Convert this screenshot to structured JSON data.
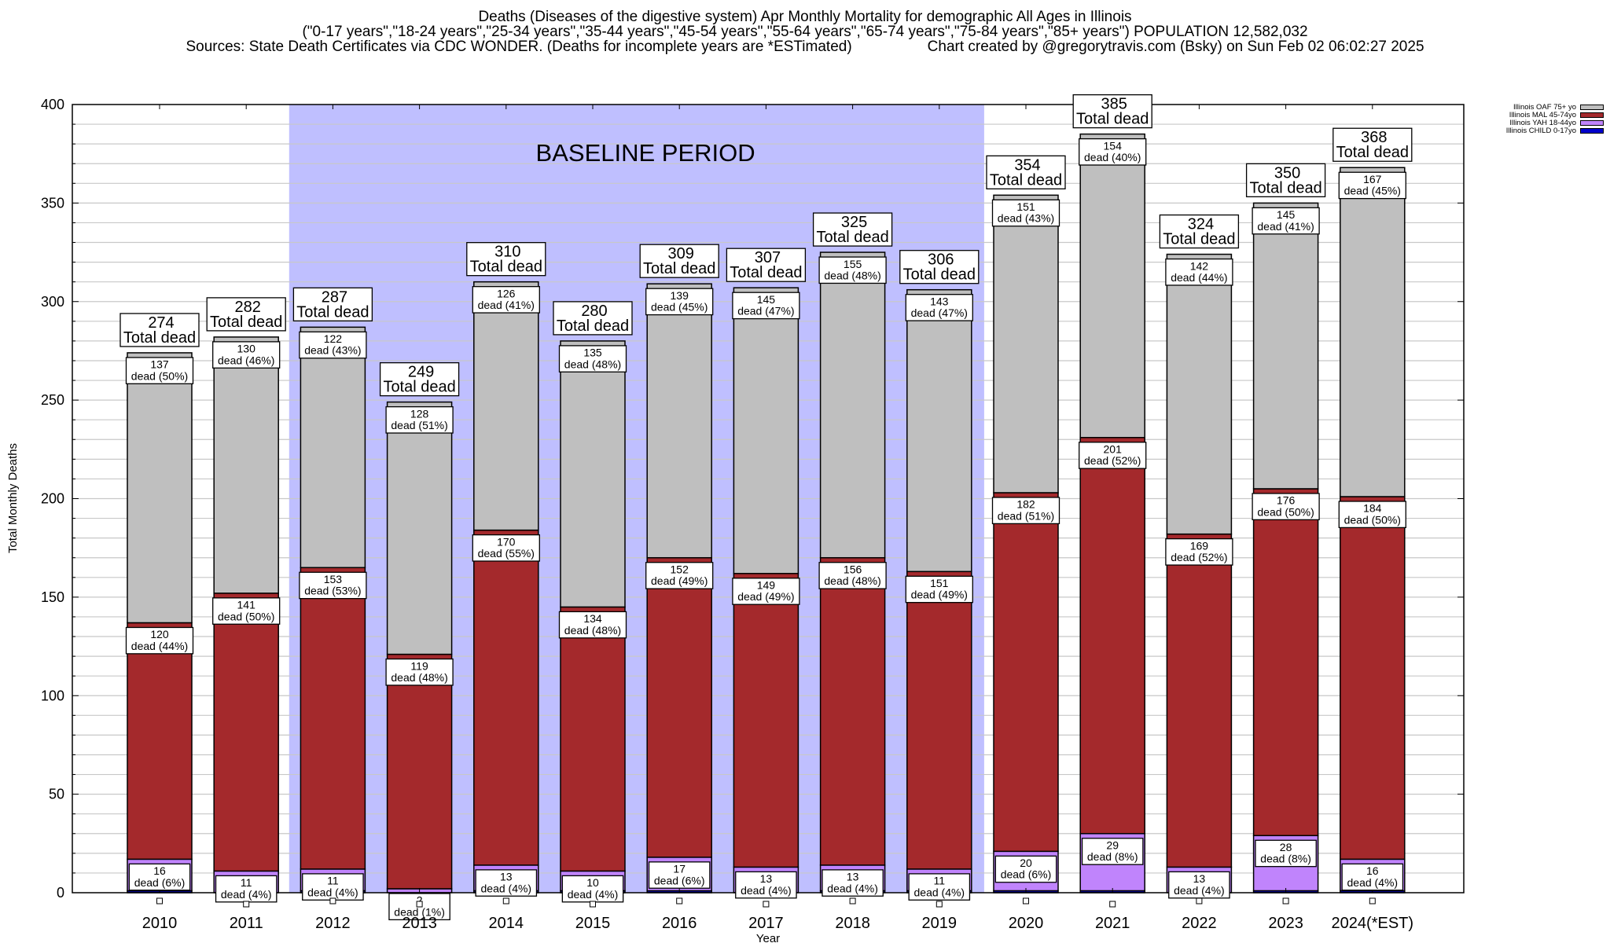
{
  "header": {
    "title_line1": "Deaths (Diseases of the digestive system) Apr Monthly Mortality for demographic All Ages in Illinois",
    "title_line2": "(\"0-17 years\",\"18-24 years\",\"25-34 years\",\"35-44 years\",\"45-54 years\",\"55-64 years\",\"65-74 years\",\"75-84 years\",\"85+ years\") POPULATION 12,582,032",
    "title_line3_left": "Sources: State Death Certificates via CDC WONDER. (Deaths for incomplete years are *ESTimated)",
    "title_line3_right": "Chart created by @gregorytravis.com (Bsky) on Sun Feb 02 06:02:27 2025"
  },
  "chart_data": {
    "type": "bar",
    "stacked": true,
    "title": "Deaths (Diseases of the digestive system) Apr Monthly Mortality for demographic All Ages in Illinois",
    "xlabel": "Year",
    "ylabel": "Total Monthly Deaths",
    "ylim": [
      0,
      400
    ],
    "yticks": [
      0,
      50,
      100,
      150,
      200,
      250,
      300,
      350,
      400
    ],
    "minor_grid_step": 10,
    "grid": true,
    "legend_position": "top-right",
    "categories": [
      "2010",
      "2011",
      "2012",
      "2013",
      "2014",
      "2015",
      "2016",
      "2017",
      "2018",
      "2019",
      "2020",
      "2021",
      "2022",
      "2023",
      "2024(*EST)"
    ],
    "series": [
      {
        "name": "Illinois CHILD 0-17yo",
        "color": "#0000cc",
        "values": [
          1,
          0,
          1,
          0,
          1,
          1,
          1,
          0,
          1,
          1,
          1,
          1,
          0,
          1,
          1
        ],
        "labeled": false
      },
      {
        "name": "Illinois YAH 18-44yo",
        "color": "#c084fc",
        "values": [
          16,
          11,
          11,
          2,
          13,
          10,
          17,
          13,
          13,
          11,
          20,
          29,
          13,
          28,
          16
        ],
        "percents": [
          6,
          4,
          4,
          1,
          4,
          4,
          6,
          4,
          4,
          4,
          6,
          8,
          4,
          8,
          4
        ],
        "labeled": true
      },
      {
        "name": "Illinois MAL 45-74yo",
        "color": "#a4292c",
        "values": [
          120,
          141,
          153,
          119,
          170,
          134,
          152,
          149,
          156,
          151,
          182,
          201,
          169,
          176,
          184
        ],
        "percents": [
          44,
          50,
          53,
          48,
          55,
          48,
          49,
          49,
          48,
          49,
          51,
          52,
          52,
          50,
          50
        ],
        "labeled": true
      },
      {
        "name": "Illinois OAF 75+ yo",
        "color": "#bfbfbf",
        "values": [
          137,
          130,
          122,
          128,
          126,
          135,
          139,
          145,
          155,
          143,
          151,
          154,
          142,
          145,
          167
        ],
        "percents": [
          50,
          46,
          43,
          51,
          41,
          48,
          45,
          47,
          48,
          47,
          43,
          40,
          44,
          41,
          45
        ],
        "labeled": true
      }
    ],
    "totals": [
      274,
      282,
      287,
      249,
      310,
      280,
      309,
      307,
      325,
      306,
      354,
      385,
      324,
      350,
      368
    ],
    "total_label_suffix": "Total dead",
    "segment_label_word": "dead",
    "annotations": [
      {
        "text": "BASELINE PERIOD",
        "span": [
          "2012",
          "2019"
        ],
        "color": "#bfbfff"
      }
    ]
  }
}
